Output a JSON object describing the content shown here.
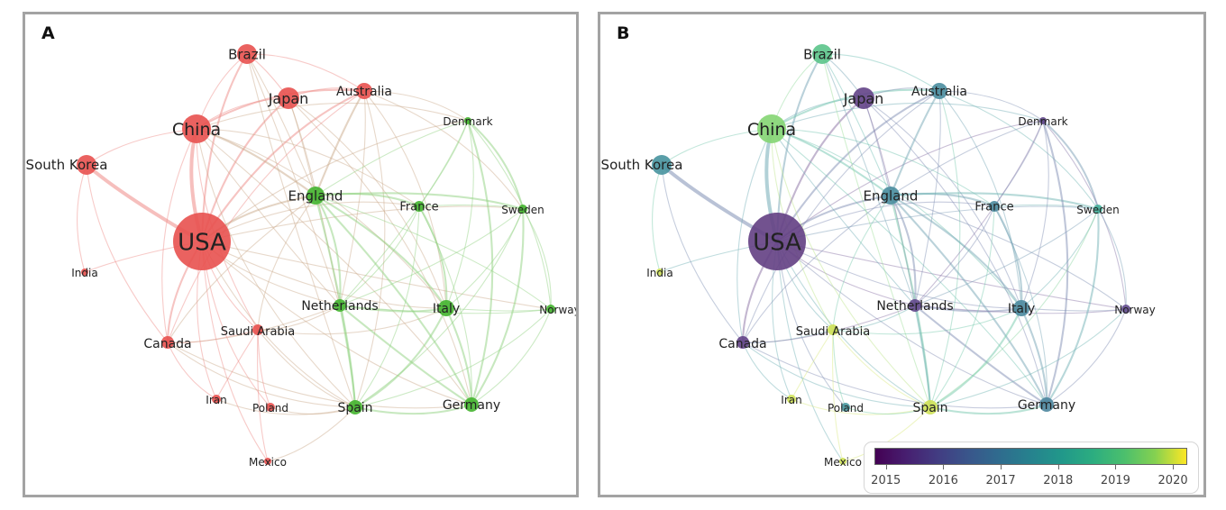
{
  "panels": {
    "a": {
      "label": "A"
    },
    "b": {
      "label": "B"
    }
  },
  "colors": {
    "cluster_red": "#e8514f",
    "cluster_green": "#44b42f"
  },
  "nodes": [
    {
      "name": "USA",
      "cluster": "red",
      "year": 2015.3
    },
    {
      "name": "China",
      "cluster": "red",
      "year": 2019.6
    },
    {
      "name": "Brazil",
      "cluster": "red",
      "year": 2019.0
    },
    {
      "name": "Japan",
      "cluster": "red",
      "year": 2015.4
    },
    {
      "name": "Australia",
      "cluster": "red",
      "year": 2017.3
    },
    {
      "name": "South Korea",
      "cluster": "red",
      "year": 2017.5
    },
    {
      "name": "India",
      "cluster": "red",
      "year": 2020.0
    },
    {
      "name": "Canada",
      "cluster": "red",
      "year": 2015.4
    },
    {
      "name": "Saudi Arabia",
      "cluster": "red",
      "year": 2020.0
    },
    {
      "name": "Iran",
      "cluster": "red",
      "year": 2020.0
    },
    {
      "name": "Poland",
      "cluster": "red",
      "year": 2017.6
    },
    {
      "name": "Mexico",
      "cluster": "red",
      "year": 2020.0
    },
    {
      "name": "England",
      "cluster": "green",
      "year": 2017.3
    },
    {
      "name": "France",
      "cluster": "green",
      "year": 2017.2
    },
    {
      "name": "Denmark",
      "cluster": "green",
      "year": 2015.5
    },
    {
      "name": "Sweden",
      "cluster": "green",
      "year": 2018.3
    },
    {
      "name": "Netherlands",
      "cluster": "green",
      "year": 2015.5
    },
    {
      "name": "Italy",
      "cluster": "green",
      "year": 2017.2
    },
    {
      "name": "Norway",
      "cluster": "green",
      "year": 2015.6
    },
    {
      "name": "Spain",
      "cluster": "green",
      "year": 2020.0
    },
    {
      "name": "Germany",
      "cluster": "green",
      "year": 2017.1
    }
  ],
  "edges": [
    [
      "USA",
      "China",
      3
    ],
    [
      "USA",
      "South Korea",
      3
    ],
    [
      "USA",
      "Japan",
      2
    ],
    [
      "USA",
      "Brazil",
      2
    ],
    [
      "USA",
      "Australia",
      2
    ],
    [
      "USA",
      "England",
      2
    ],
    [
      "USA",
      "Canada",
      2
    ],
    [
      "USA",
      "India",
      1
    ],
    [
      "USA",
      "Saudi Arabia",
      1
    ],
    [
      "USA",
      "Netherlands",
      1
    ],
    [
      "USA",
      "Italy",
      1
    ],
    [
      "USA",
      "Germany",
      1
    ],
    [
      "USA",
      "France",
      1
    ],
    [
      "USA",
      "Spain",
      1
    ],
    [
      "USA",
      "Iran",
      1
    ],
    [
      "USA",
      "Poland",
      1
    ],
    [
      "USA",
      "Mexico",
      1
    ],
    [
      "USA",
      "Denmark",
      1
    ],
    [
      "USA",
      "Sweden",
      1
    ],
    [
      "USA",
      "Norway",
      1
    ],
    [
      "China",
      "Japan",
      1
    ],
    [
      "China",
      "Brazil",
      1
    ],
    [
      "China",
      "Australia",
      2
    ],
    [
      "China",
      "South Korea",
      1
    ],
    [
      "China",
      "England",
      2
    ],
    [
      "China",
      "Canada",
      1
    ],
    [
      "China",
      "Saudi Arabia",
      1
    ],
    [
      "China",
      "Netherlands",
      1
    ],
    [
      "China",
      "Spain",
      1
    ],
    [
      "China",
      "Germany",
      1
    ],
    [
      "China",
      "Italy",
      1
    ],
    [
      "China",
      "France",
      1
    ],
    [
      "China",
      "Denmark",
      1
    ],
    [
      "Brazil",
      "Japan",
      1
    ],
    [
      "Brazil",
      "Australia",
      1
    ],
    [
      "Brazil",
      "England",
      1
    ],
    [
      "Brazil",
      "Spain",
      1
    ],
    [
      "Brazil",
      "Netherlands",
      1
    ],
    [
      "Japan",
      "Australia",
      1
    ],
    [
      "Japan",
      "England",
      1
    ],
    [
      "Japan",
      "Netherlands",
      1
    ],
    [
      "Japan",
      "Germany",
      1
    ],
    [
      "Japan",
      "Italy",
      1
    ],
    [
      "Australia",
      "England",
      2
    ],
    [
      "Australia",
      "Denmark",
      1
    ],
    [
      "Australia",
      "Netherlands",
      1
    ],
    [
      "Australia",
      "Spain",
      1
    ],
    [
      "Australia",
      "Canada",
      1
    ],
    [
      "Australia",
      "Sweden",
      1
    ],
    [
      "Australia",
      "Italy",
      1
    ],
    [
      "South Korea",
      "Canada",
      1
    ],
    [
      "South Korea",
      "India",
      1
    ],
    [
      "Canada",
      "Saudi Arabia",
      1
    ],
    [
      "Canada",
      "Iran",
      1
    ],
    [
      "Canada",
      "England",
      1
    ],
    [
      "Canada",
      "Netherlands",
      1
    ],
    [
      "Canada",
      "Spain",
      1
    ],
    [
      "Canada",
      "Germany",
      1
    ],
    [
      "Saudi Arabia",
      "Iran",
      1
    ],
    [
      "Saudi Arabia",
      "Poland",
      1
    ],
    [
      "Saudi Arabia",
      "Spain",
      1
    ],
    [
      "Saudi Arabia",
      "Netherlands",
      1
    ],
    [
      "Saudi Arabia",
      "Italy",
      1
    ],
    [
      "Saudi Arabia",
      "England",
      1
    ],
    [
      "Iran",
      "Spain",
      1
    ],
    [
      "Poland",
      "Spain",
      1
    ],
    [
      "Mexico",
      "Spain",
      1
    ],
    [
      "Mexico",
      "Saudi Arabia",
      1
    ],
    [
      "England",
      "Netherlands",
      2
    ],
    [
      "England",
      "Italy",
      2
    ],
    [
      "England",
      "Spain",
      2
    ],
    [
      "England",
      "Germany",
      2
    ],
    [
      "England",
      "France",
      2
    ],
    [
      "England",
      "Sweden",
      2
    ],
    [
      "England",
      "Denmark",
      1
    ],
    [
      "England",
      "Norway",
      1
    ],
    [
      "Netherlands",
      "Italy",
      2
    ],
    [
      "Netherlands",
      "Spain",
      2
    ],
    [
      "Netherlands",
      "Germany",
      2
    ],
    [
      "Netherlands",
      "France",
      1
    ],
    [
      "Netherlands",
      "Sweden",
      1
    ],
    [
      "Netherlands",
      "Denmark",
      1
    ],
    [
      "Netherlands",
      "Norway",
      1
    ],
    [
      "Italy",
      "Spain",
      2
    ],
    [
      "Italy",
      "Germany",
      2
    ],
    [
      "Italy",
      "France",
      2
    ],
    [
      "Italy",
      "Sweden",
      1
    ],
    [
      "Italy",
      "Norway",
      1
    ],
    [
      "Italy",
      "Denmark",
      1
    ],
    [
      "Germany",
      "Spain",
      2
    ],
    [
      "Germany",
      "France",
      1
    ],
    [
      "Germany",
      "Sweden",
      2
    ],
    [
      "Germany",
      "Denmark",
      2
    ],
    [
      "Germany",
      "Norway",
      1
    ],
    [
      "France",
      "Sweden",
      1
    ],
    [
      "France",
      "Denmark",
      1
    ],
    [
      "France",
      "Spain",
      1
    ],
    [
      "Denmark",
      "Sweden",
      2
    ],
    [
      "Denmark",
      "Norway",
      1
    ],
    [
      "Sweden",
      "Norway",
      1
    ],
    [
      "Sweden",
      "Spain",
      1
    ],
    [
      "Norway",
      "Spain",
      1
    ]
  ],
  "legend": {
    "ticks": [
      "2015",
      "2016",
      "2017",
      "2018",
      "2019",
      "2020"
    ],
    "min": 2014.8,
    "max": 2020.25
  }
}
